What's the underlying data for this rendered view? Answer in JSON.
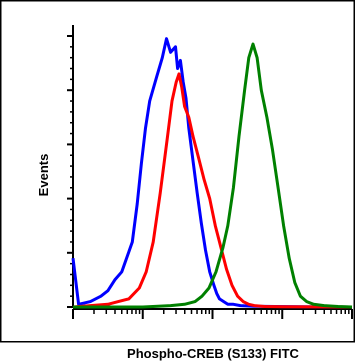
{
  "chart_data": {
    "type": "line",
    "title": "",
    "xlabel": "Phospho-CREB (S133) FITC",
    "ylabel": "Events",
    "xscale": "log",
    "x_range_decades": [
      0,
      4
    ],
    "y_range": [
      0,
      100
    ],
    "grid": false,
    "legend": "none",
    "frame_color": "#000000",
    "series": [
      {
        "color": "#0000ff",
        "x": [
          0.0,
          0.08,
          0.25,
          0.4,
          0.5,
          0.6,
          0.7,
          0.85,
          0.92,
          0.98,
          1.04,
          1.1,
          1.2,
          1.28,
          1.34,
          1.4,
          1.47,
          1.5,
          1.54,
          1.58,
          1.62,
          1.66,
          1.72,
          1.78,
          1.84,
          1.9,
          1.96,
          2.02,
          2.06,
          2.1,
          2.16,
          2.22,
          2.3,
          2.4,
          2.6,
          2.9,
          3.3,
          4.0
        ],
        "y": [
          18.0,
          1.0,
          2.0,
          4.0,
          6.0,
          10.0,
          13.0,
          24.0,
          38.0,
          53.0,
          66.0,
          76.0,
          85.0,
          92.0,
          99.0,
          94.0,
          96.0,
          88.0,
          91.0,
          83.0,
          77.0,
          66.0,
          54.0,
          42.0,
          31.0,
          21.0,
          13.0,
          8.0,
          5.0,
          3.0,
          2.0,
          1.0,
          1.0,
          0.5,
          0.3,
          0.2,
          0.1,
          0.0
        ]
      },
      {
        "color": "#ff0000",
        "x": [
          0.0,
          0.25,
          0.5,
          0.65,
          0.8,
          0.95,
          1.05,
          1.15,
          1.25,
          1.35,
          1.42,
          1.48,
          1.52,
          1.56,
          1.6,
          1.66,
          1.72,
          1.8,
          1.88,
          1.96,
          2.04,
          2.12,
          2.2,
          2.28,
          2.36,
          2.44,
          2.52,
          2.6,
          2.75,
          3.0,
          4.0
        ],
        "y": [
          0.0,
          0.5,
          1.0,
          2.0,
          3.0,
          7.0,
          13.0,
          24.0,
          42.0,
          62.0,
          76.0,
          83.0,
          86.0,
          81.0,
          74.0,
          70.0,
          63.0,
          55.0,
          47.0,
          40.0,
          30.0,
          22.0,
          14.0,
          8.0,
          4.0,
          2.0,
          1.0,
          0.5,
          0.2,
          0.1,
          0.0
        ]
      },
      {
        "color": "#008000",
        "x": [
          0.0,
          0.5,
          1.0,
          1.4,
          1.6,
          1.75,
          1.85,
          1.95,
          2.05,
          2.15,
          2.22,
          2.3,
          2.38,
          2.46,
          2.52,
          2.58,
          2.64,
          2.7,
          2.78,
          2.86,
          2.94,
          3.02,
          3.1,
          3.18,
          3.26,
          3.35,
          3.45,
          3.6,
          3.8,
          4.0
        ],
        "y": [
          0.0,
          0.0,
          0.0,
          0.5,
          1.0,
          2.0,
          4.0,
          7.0,
          13.0,
          22.0,
          30.0,
          44.0,
          63.0,
          80.0,
          92.0,
          97.0,
          92.0,
          80.0,
          70.0,
          58.0,
          44.0,
          30.0,
          18.0,
          9.0,
          4.0,
          2.0,
          1.0,
          0.5,
          0.2,
          0.0
        ]
      }
    ]
  }
}
